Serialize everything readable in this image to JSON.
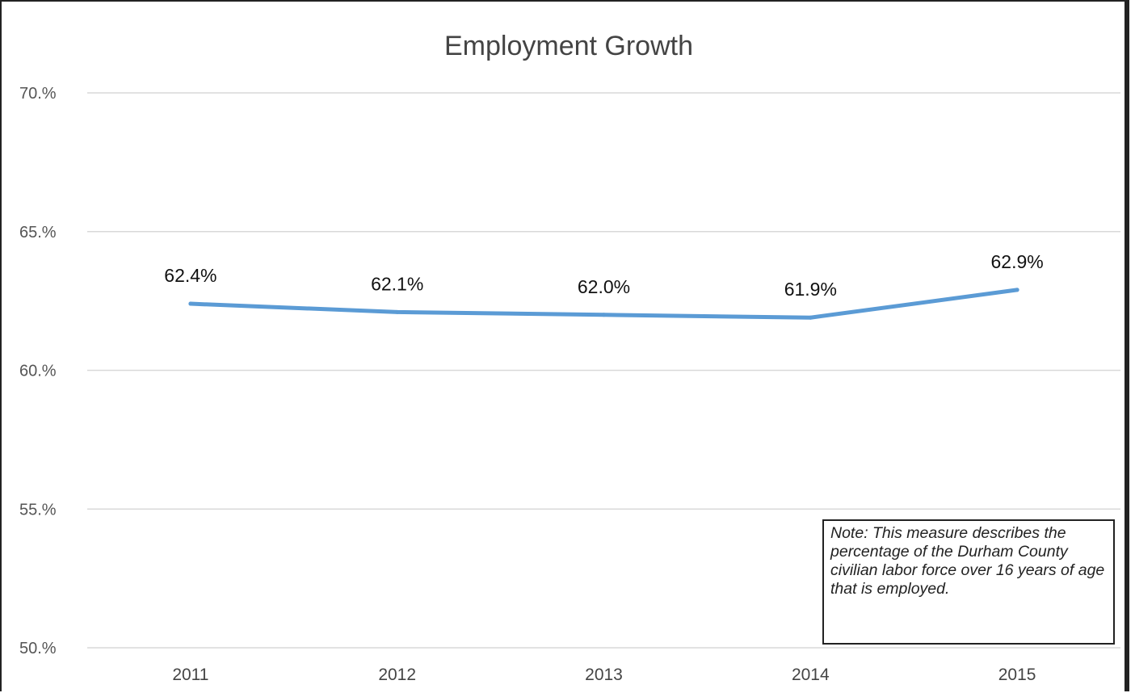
{
  "chart_data": {
    "type": "line",
    "title": "Employment Growth",
    "xlabel": "",
    "ylabel": "",
    "categories": [
      "2011",
      "2012",
      "2013",
      "2014",
      "2015"
    ],
    "series": [
      {
        "values": [
          62.4,
          62.1,
          62.0,
          61.9,
          62.9
        ],
        "data_labels": [
          "62.4%",
          "62.1%",
          "62.0%",
          "61.9%",
          "62.9%"
        ],
        "color": "#5b9bd5"
      }
    ],
    "ylim": [
      50,
      70
    ],
    "yticks": [
      50,
      55,
      60,
      65,
      70
    ],
    "ytick_labels": [
      "50.%",
      "55.%",
      "60.%",
      "65.%",
      "70.%"
    ],
    "grid": true,
    "legend": "none",
    "annotation": "Note: This measure describes the percentage of the Durham County civilian labor force over 16 years of age that is employed."
  }
}
